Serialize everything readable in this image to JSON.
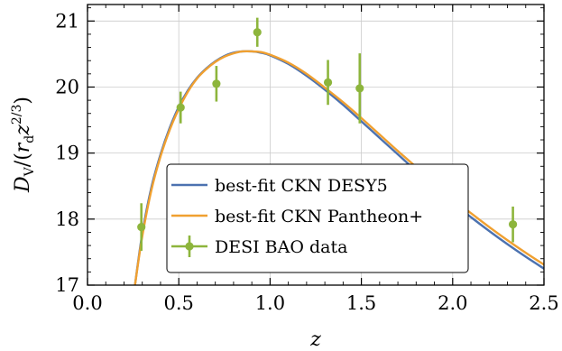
{
  "chart_data": {
    "type": "line",
    "title": "",
    "xlabel": "z",
    "ylabel": "D_V/(r_d z^{2/3})",
    "xlim": [
      0.0,
      2.5
    ],
    "ylim": [
      17,
      21.25
    ],
    "grid": true,
    "legend_position": "lower-center",
    "x_ticks": [
      "0.0",
      "0.5",
      "1.0",
      "1.5",
      "2.0",
      "2.5"
    ],
    "y_ticks": [
      "17",
      "18",
      "19",
      "20",
      "21"
    ],
    "series": [
      {
        "name": "best-fit CKN DESY5",
        "kind": "line",
        "color": "#4c72b0",
        "x": [
          0.26,
          0.3,
          0.35,
          0.4,
          0.45,
          0.5,
          0.55,
          0.6,
          0.65,
          0.7,
          0.75,
          0.8,
          0.85,
          0.9,
          0.95,
          1.0,
          1.1,
          1.2,
          1.3,
          1.4,
          1.5,
          1.6,
          1.7,
          1.8,
          1.9,
          2.0,
          2.1,
          2.2,
          2.3,
          2.4,
          2.5
        ],
        "y": [
          17.0,
          17.78,
          18.48,
          18.98,
          19.38,
          19.7,
          19.95,
          20.14,
          20.28,
          20.39,
          20.47,
          20.52,
          20.54,
          20.54,
          20.52,
          20.48,
          20.35,
          20.17,
          19.96,
          19.73,
          19.48,
          19.23,
          18.98,
          18.73,
          18.49,
          18.25,
          18.03,
          17.82,
          17.62,
          17.43,
          17.25
        ]
      },
      {
        "name": "best-fit CKN Pantheon+",
        "kind": "line",
        "color": "#f0a030",
        "x": [
          0.26,
          0.3,
          0.35,
          0.4,
          0.45,
          0.5,
          0.55,
          0.6,
          0.65,
          0.7,
          0.75,
          0.8,
          0.85,
          0.9,
          0.95,
          1.0,
          1.1,
          1.2,
          1.3,
          1.4,
          1.5,
          1.6,
          1.7,
          1.8,
          1.9,
          2.0,
          2.1,
          2.2,
          2.3,
          2.4,
          2.5
        ],
        "y": [
          17.0,
          17.74,
          18.44,
          18.95,
          19.35,
          19.67,
          19.93,
          20.13,
          20.27,
          20.38,
          20.46,
          20.51,
          20.54,
          20.54,
          20.53,
          20.49,
          20.37,
          20.2,
          19.99,
          19.77,
          19.53,
          19.28,
          19.03,
          18.79,
          18.55,
          18.31,
          18.09,
          17.88,
          17.68,
          17.49,
          17.31
        ]
      },
      {
        "name": "DESI BAO data",
        "kind": "errorbar",
        "color": "#8db53c",
        "x": [
          0.295,
          0.51,
          0.706,
          0.93,
          1.317,
          1.491,
          2.33
        ],
        "y": [
          17.88,
          19.69,
          20.05,
          20.83,
          20.07,
          19.98,
          17.92
        ],
        "yerr": [
          0.36,
          0.24,
          0.27,
          0.22,
          0.34,
          0.53,
          0.27
        ]
      }
    ]
  }
}
